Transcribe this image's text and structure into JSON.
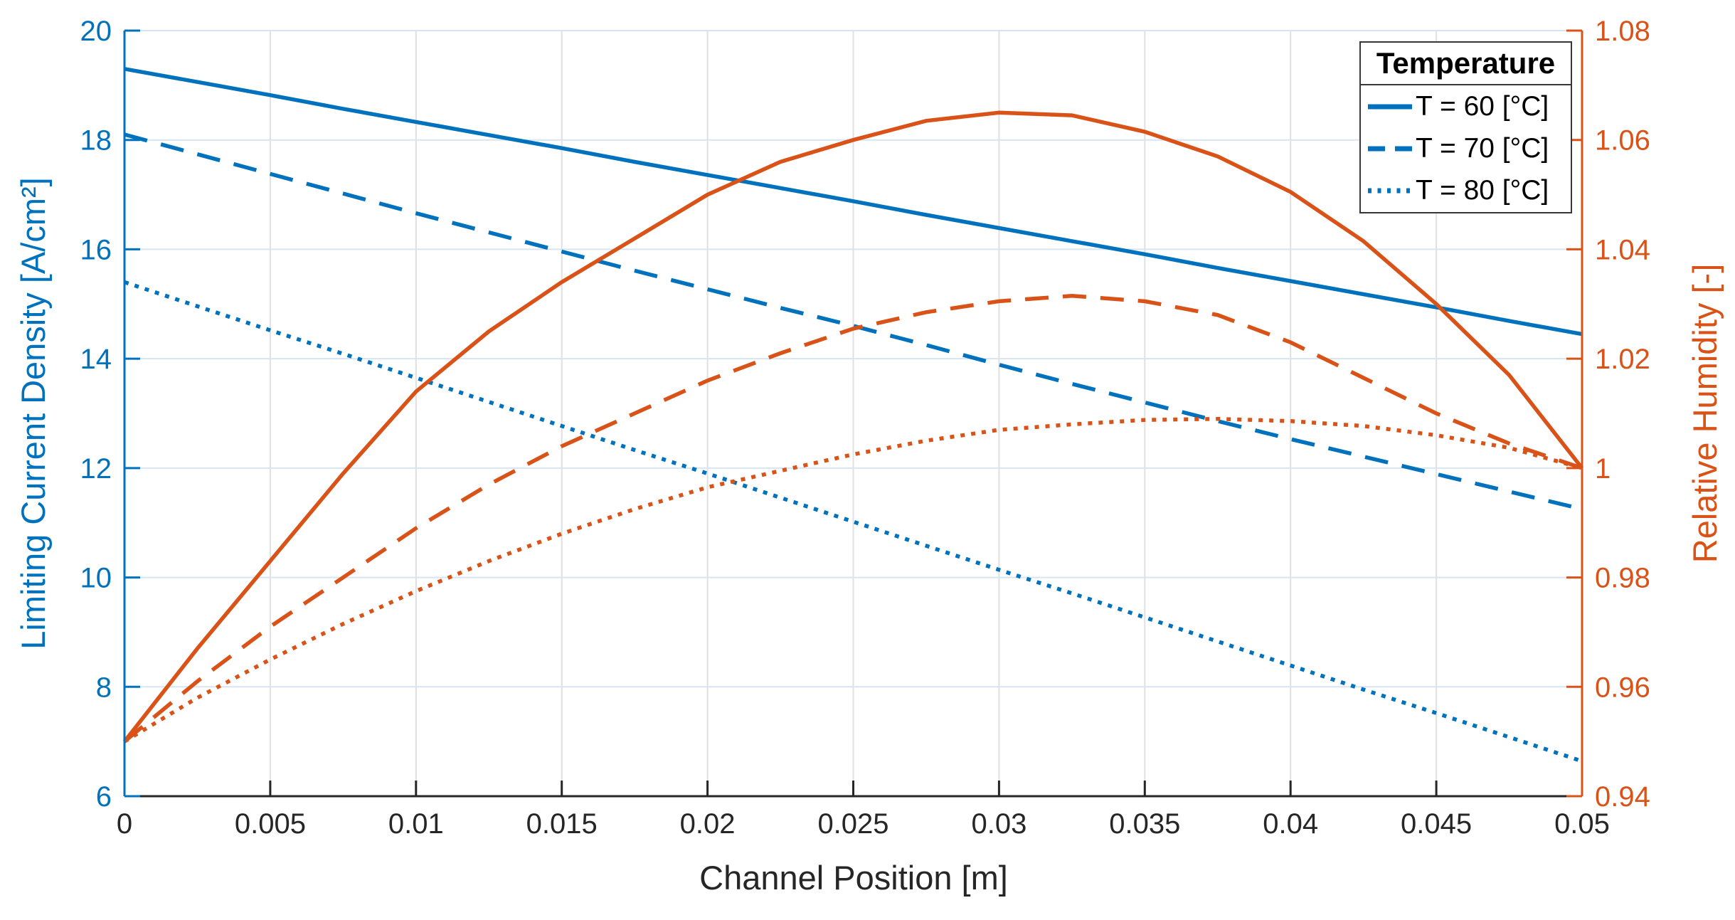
{
  "figure": {
    "colors": {
      "blue": "#0072BD",
      "orange": "#D95319",
      "axis_dark": "#262626",
      "grid_vertical": "#e0e0e0",
      "grid_horizontal": "#d7e4f2",
      "background": "#ffffff",
      "legend_border": "#373737",
      "legend_text": "#000000"
    },
    "legend": {
      "title": "Temperature",
      "items": [
        {
          "label": "T = 60 [°C]",
          "line_style": "solid"
        },
        {
          "label": "T = 70 [°C]",
          "line_style": "dashed"
        },
        {
          "label": "T = 80 [°C]",
          "line_style": "dotted"
        }
      ]
    },
    "x_axis_label": "Channel Position [m]",
    "y_axis_left_label": "Limiting Current Density [A/cm²]",
    "y_axis_right_label": "Relative Humidity [-]"
  },
  "chart_data": {
    "type": "line",
    "title": "",
    "xlabel": "Channel Position [m]",
    "ylabel_left": "Limiting Current Density [A/cm²]",
    "ylabel_right": "Relative Humidity [-]",
    "grid": true,
    "legend_position": "top-right",
    "x_range": [
      0,
      0.05
    ],
    "y_left_range": [
      6,
      20
    ],
    "y_right_range": [
      0.94,
      1.08
    ],
    "x_tick_values": [
      0,
      0.005,
      0.01,
      0.015,
      0.02,
      0.025,
      0.03,
      0.035,
      0.04,
      0.045,
      0.05
    ],
    "x_tick_labels": [
      "0",
      "0.005",
      "0.01",
      "0.015",
      "0.02",
      "0.025",
      "0.03",
      "0.035",
      "0.04",
      "0.045",
      "0.05"
    ],
    "y_left_tick_values": [
      6,
      8,
      10,
      12,
      14,
      16,
      18,
      20
    ],
    "y_left_tick_labels": [
      "6",
      "8",
      "10",
      "12",
      "14",
      "16",
      "18",
      "20"
    ],
    "y_right_tick_values": [
      0.94,
      0.96,
      0.98,
      1,
      1.02,
      1.04,
      1.06,
      1.08
    ],
    "y_right_tick_labels": [
      "0.94",
      "0.96",
      "0.98",
      "1",
      "1.02",
      "1.04",
      "1.06",
      "1.08"
    ],
    "x": [
      0,
      0.0025,
      0.005,
      0.0075,
      0.01,
      0.0125,
      0.015,
      0.0175,
      0.02,
      0.0225,
      0.025,
      0.0275,
      0.03,
      0.0325,
      0.035,
      0.0375,
      0.04,
      0.0425,
      0.045,
      0.0475,
      0.05
    ],
    "series": [
      {
        "name": "Limiting current density, T = 60 °C",
        "axis": "left",
        "line_style": "solid",
        "color": "#0072BD",
        "values": [
          19.3,
          19.06,
          18.82,
          18.57,
          18.33,
          18.09,
          17.85,
          17.6,
          17.36,
          17.12,
          16.88,
          16.63,
          16.39,
          16.15,
          15.91,
          15.66,
          15.42,
          15.18,
          14.94,
          14.69,
          14.45
        ]
      },
      {
        "name": "Limiting current density, T = 70 °C",
        "axis": "left",
        "line_style": "dashed",
        "color": "#0072BD",
        "values": [
          18.1,
          17.74,
          17.38,
          17.02,
          16.66,
          16.31,
          15.96,
          15.61,
          15.27,
          14.93,
          14.6,
          14.25,
          13.89,
          13.54,
          13.2,
          12.86,
          12.53,
          12.21,
          11.89,
          11.57,
          11.25
        ]
      },
      {
        "name": "Limiting current density, T = 80 °C",
        "axis": "left",
        "line_style": "dotted",
        "color": "#0072BD",
        "values": [
          15.4,
          14.96,
          14.52,
          14.09,
          13.65,
          13.21,
          12.77,
          12.33,
          11.9,
          11.46,
          11.02,
          10.58,
          10.14,
          9.71,
          9.27,
          8.83,
          8.39,
          7.95,
          7.52,
          7.08,
          6.64
        ]
      },
      {
        "name": "Relative humidity, T = 60 °C",
        "axis": "right",
        "line_style": "solid",
        "color": "#D95319",
        "values": [
          0.95,
          0.967,
          0.983,
          0.999,
          1.014,
          1.025,
          1.034,
          1.042,
          1.05,
          1.056,
          1.06,
          1.0635,
          1.065,
          1.0645,
          1.0615,
          1.057,
          1.0505,
          1.0415,
          1.03,
          1.017,
          1.0
        ]
      },
      {
        "name": "Relative humidity, T = 70 °C",
        "axis": "right",
        "line_style": "dashed",
        "color": "#D95319",
        "values": [
          0.95,
          0.961,
          0.971,
          0.98,
          0.989,
          0.997,
          1.004,
          1.01,
          1.016,
          1.021,
          1.0255,
          1.0285,
          1.0305,
          1.0315,
          1.0305,
          1.028,
          1.023,
          1.0165,
          1.01,
          1.0045,
          1.0
        ]
      },
      {
        "name": "Relative humidity, T = 80 °C",
        "axis": "right",
        "line_style": "dotted",
        "color": "#D95319",
        "values": [
          0.95,
          0.958,
          0.965,
          0.9715,
          0.9775,
          0.983,
          0.988,
          0.9925,
          0.9965,
          0.9995,
          1.0025,
          1.005,
          1.007,
          1.008,
          1.0088,
          1.009,
          1.0086,
          1.0077,
          1.006,
          1.0037,
          1.0
        ]
      }
    ]
  }
}
